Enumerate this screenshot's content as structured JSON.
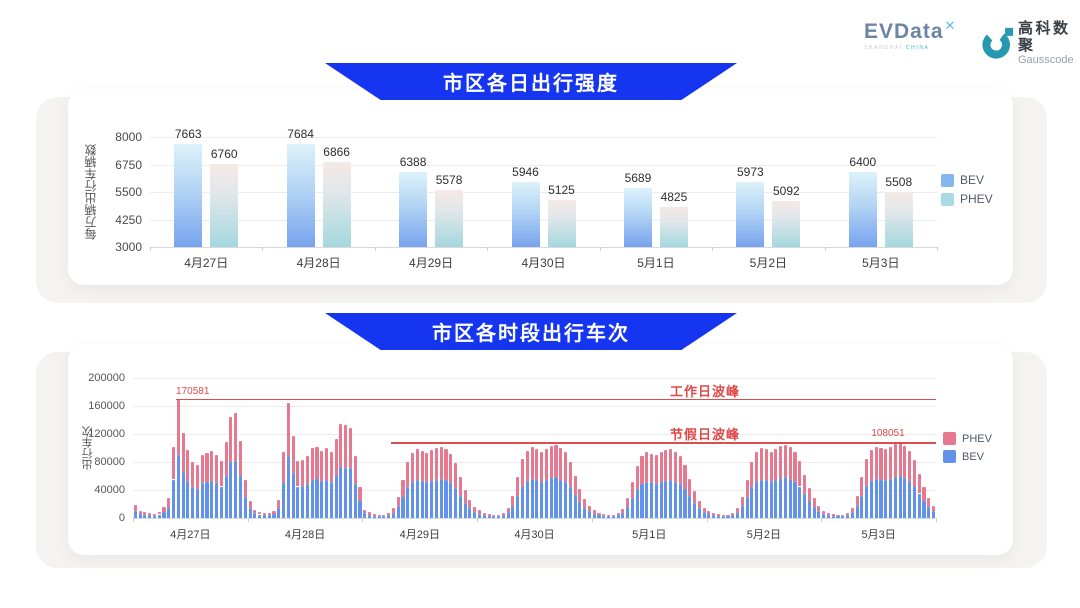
{
  "header": {
    "evdata": {
      "wordmark": "EVData",
      "superscript": "✕",
      "caption_left": "SHANGHAI",
      "caption_right": "CHINA"
    },
    "gausscode": {
      "cn": "高科数聚",
      "en": "Gausscode"
    }
  },
  "colors": {
    "banner_blue": "#1635f0",
    "bev_gradient_top": "#ddf2fa",
    "bev_gradient_mid": "#b3d4f4",
    "bev_gradient_bottom": "#76a3ee",
    "phev_gradient_top": "#f5e9e6",
    "phev_gradient_mid": "#e2e7ea",
    "phev_gradient_bottom": "#a3d8de",
    "legend_bev_swatch": "#84b7ee",
    "legend_phev_swatch": "#a9dbe4",
    "hourly_bev_blue": "#6292ea",
    "hourly_phev_pink": "#e5798f",
    "annotation_red": "#d94f4f",
    "annotation_text_red": "#e04848"
  },
  "chart_data": [
    {
      "type": "bar",
      "title": "市区各日出行强度",
      "ylabel": "每万辆出行车辆数",
      "ylim": [
        3000,
        8000
      ],
      "yticks": [
        3000,
        4250,
        5500,
        6750,
        8000
      ],
      "grid": true,
      "legend_position": "right",
      "categories": [
        "4月27日",
        "4月28日",
        "4月29日",
        "4月30日",
        "5月1日",
        "5月2日",
        "5月3日"
      ],
      "legend": [
        "BEV",
        "PHEV"
      ],
      "series": [
        {
          "name": "BEV",
          "values": [
            7663,
            7684,
            6388,
            5946,
            5689,
            5973,
            6400
          ]
        },
        {
          "name": "PHEV",
          "values": [
            6760,
            6866,
            5578,
            5125,
            4825,
            5092,
            5508
          ]
        }
      ]
    },
    {
      "type": "bar",
      "subtype": "stacked-hourly",
      "title": "市区各时段出行车次",
      "ylabel": "出行车次",
      "ylim": [
        0,
        200000
      ],
      "yticks": [
        0,
        40000,
        80000,
        120000,
        160000,
        200000
      ],
      "grid": true,
      "legend_position": "right",
      "categories": [
        "4月27日",
        "4月28日",
        "4月29日",
        "4月30日",
        "5月1日",
        "5月2日",
        "5月3日"
      ],
      "legend": [
        "PHEV",
        "BEV"
      ],
      "series": [
        {
          "name": "BEV",
          "values_by_day": [
            [
              10000,
              5500,
              4700,
              3900,
              3300,
              5000,
              8800,
              15400,
              55000,
              90000,
              66000,
              53000,
              44000,
              42000,
              50000,
              51000,
              53000,
              50000,
              45000,
              60000,
              80000,
              82000,
              60000,
              30000
            ],
            [
              13800,
              6600,
              5000,
              4100,
              3600,
              5500,
              14300,
              52000,
              88000,
              64000,
              45000,
              46000,
              48000,
              55000,
              56000,
              53000,
              55000,
              52000,
              62000,
              73000,
              72000,
              71000,
              48000,
              24000
            ],
            [
              6600,
              4400,
              3300,
              2750,
              2750,
              3850,
              7700,
              16500,
              30000,
              44000,
              51000,
              54000,
              53000,
              51000,
              53000,
              55000,
              56000,
              54000,
              51000,
              43000,
              32000,
              22000,
              14300,
              8800
            ],
            [
              6000,
              4100,
              3000,
              2750,
              2750,
              3850,
              8250,
              17600,
              32000,
              46000,
              53000,
              56000,
              54000,
              52000,
              54000,
              57000,
              58000,
              55000,
              52000,
              44000,
              33000,
              23000,
              14800,
              9300
            ],
            [
              6000,
              3850,
              3000,
              2650,
              2650,
              3600,
              7150,
              15400,
              28600,
              41000,
              48000,
              52000,
              51000,
              49000,
              52000,
              53000,
              54000,
              52000,
              49000,
              42000,
              31000,
              21000,
              13800,
              8200
            ],
            [
              5500,
              3850,
              2850,
              2650,
              2750,
              3850,
              7700,
              16500,
              30000,
              44000,
              52000,
              55000,
              54000,
              52000,
              54000,
              57000,
              58000,
              56000,
              52000,
              45000,
              34000,
              23600,
              15400,
              9300
            ],
            [
              5500,
              3700,
              2850,
              2650,
              2750,
              4100,
              8250,
              17600,
              32000,
              46000,
              53000,
              56000,
              55000,
              54000,
              56000,
              58000,
              60000,
              57000,
              53000,
              46000,
              35000,
              24200,
              15400,
              9300
            ]
          ]
        },
        {
          "name": "PHEV",
          "values_by_day": [
            [
              8000,
              4500,
              3800,
              3100,
              2700,
              4000,
              7200,
              12600,
              46000,
              80581,
              56000,
              44000,
              36000,
              34000,
              40000,
              42000,
              43000,
              40000,
              37000,
              49000,
              65000,
              68000,
              50000,
              25000
            ],
            [
              11200,
              5400,
              4000,
              3400,
              2900,
              4500,
              11700,
              43000,
              76000,
              53000,
              37000,
              37000,
              40000,
              45000,
              45000,
              43000,
              45000,
              43000,
              51000,
              61000,
              61000,
              58000,
              40000,
              20000
            ],
            [
              5400,
              3600,
              2700,
              2250,
              2250,
              3150,
              6300,
              13500,
              25000,
              36000,
              42000,
              44000,
              43000,
              42000,
              44000,
              45000,
              46000,
              44000,
              41000,
              35000,
              26000,
              18000,
              11700,
              7200
            ],
            [
              5000,
              3400,
              2500,
              2250,
              2250,
              3150,
              6750,
              14400,
              26000,
              38000,
              43000,
              45000,
              44000,
              43000,
              45000,
              46000,
              47000,
              45000,
              42000,
              36000,
              27000,
              19000,
              12200,
              7700
            ],
            [
              5000,
              3150,
              2500,
              2150,
              2150,
              2900,
              5850,
              12600,
              23400,
              34000,
              40000,
              42000,
              41000,
              41000,
              42000,
              44000,
              44000,
              43000,
              40000,
              34000,
              25000,
              17000,
              11200,
              6800
            ],
            [
              4500,
              3150,
              2350,
              2150,
              2250,
              3150,
              6300,
              13500,
              25000,
              36000,
              42000,
              45000,
              44000,
              43000,
              45000,
              46000,
              47000,
              45000,
              43000,
              37000,
              28000,
              19400,
              12600,
              7700
            ],
            [
              4500,
              3100,
              2350,
              2150,
              2250,
              3400,
              6750,
              14400,
              26000,
              38000,
              44000,
              46000,
              45000,
              44000,
              46000,
              48000,
              48051,
              46000,
              43000,
              37000,
              28000,
              19800,
              12600,
              7700
            ]
          ]
        }
      ],
      "annotations": [
        {
          "label": "工作日波峰",
          "value": 170581
        },
        {
          "label": "节假日波峰",
          "value": 108051
        }
      ]
    }
  ]
}
